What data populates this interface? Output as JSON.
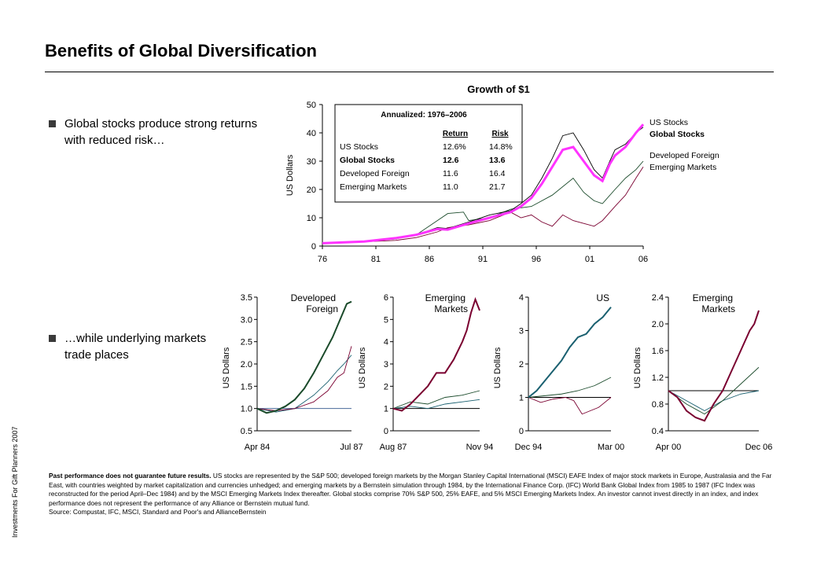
{
  "title": "Benefits of Global Diversification",
  "sidebar_text": "Investments For Gift Planners 2007",
  "bullets": [
    {
      "text": "Global stocks produce strong returns with reduced risk…"
    },
    {
      "text": "…while underlying markets trade places"
    }
  ],
  "colors": {
    "us": "#000000",
    "global": "#ff33ff",
    "developed": "#1a4a2a",
    "emerging": "#7a0030",
    "teal": "#1a6070"
  },
  "chart_data": [
    {
      "type": "line",
      "title": "Growth of $1",
      "ylabel": "US Dollars",
      "xlabel": "",
      "x_ticks": [
        "76",
        "81",
        "86",
        "91",
        "96",
        "01",
        "06"
      ],
      "y_ticks": [
        0,
        10,
        20,
        30,
        40,
        50
      ],
      "ylim": [
        0,
        50
      ],
      "xlim": [
        1976,
        2006.7
      ],
      "inset_table": {
        "title": "Annualized: 1976–2006",
        "headers": [
          "Return",
          "Risk"
        ],
        "rows": [
          {
            "name": "US Stocks",
            "return": "12.6%",
            "risk": "14.8%",
            "bold": false
          },
          {
            "name": "Global Stocks",
            "return": "12.6",
            "risk": "13.6",
            "bold": true
          },
          {
            "name": "Developed Foreign",
            "return": "11.6",
            "risk": "16.4",
            "bold": false
          },
          {
            "name": "Emerging Markets",
            "return": "11.0",
            "risk": "21.7",
            "bold": false
          }
        ]
      },
      "legend": [
        {
          "name": "US Stocks",
          "bold": false
        },
        {
          "name": "Global Stocks",
          "bold": true
        },
        {
          "name": "Developed Foreign",
          "bold": false
        },
        {
          "name": "Emerging Markets",
          "bold": false
        }
      ],
      "series": [
        {
          "name": "US Stocks",
          "color": "#000000",
          "x": [
            1976,
            1980,
            1983,
            1985,
            1987,
            1988,
            1990,
            1992,
            1994,
            1995,
            1996,
            1997,
            1998,
            1999,
            2000,
            2001,
            2002,
            2002.8,
            2003.5,
            2004,
            2005,
            2006,
            2006.7
          ],
          "y": [
            1,
            1.6,
            2.8,
            4,
            6.5,
            6.2,
            8.5,
            11,
            12.5,
            15,
            18,
            24,
            31,
            39,
            40,
            34,
            27,
            24,
            30,
            34,
            36,
            40,
            42
          ]
        },
        {
          "name": "Global Stocks",
          "color": "#ff33ff",
          "x": [
            1976,
            1980,
            1983,
            1985,
            1987,
            1988,
            1990,
            1992,
            1994,
            1995,
            1996,
            1997,
            1998,
            1999,
            2000,
            2001,
            2002,
            2002.8,
            2003.5,
            2004,
            2005,
            2006,
            2006.7
          ],
          "y": [
            1,
            1.6,
            2.8,
            4,
            6,
            5.8,
            8,
            10,
            12,
            14,
            17,
            22,
            28,
            34,
            35,
            30,
            25,
            23,
            29,
            32,
            35,
            40,
            43
          ]
        },
        {
          "name": "Developed Foreign",
          "color": "#1a4a2a",
          "x": [
            1976,
            1980,
            1983,
            1985,
            1987,
            1988,
            1989.5,
            1990,
            1992,
            1994,
            1996,
            1998,
            2000,
            2001,
            2002,
            2002.8,
            2004,
            2005,
            2006,
            2006.7
          ],
          "y": [
            1,
            1.7,
            2.5,
            4,
            9,
            11.5,
            12,
            9,
            10,
            13,
            14,
            18,
            24,
            19,
            16,
            15,
            20,
            24,
            27,
            30
          ]
        },
        {
          "name": "Emerging Markets",
          "color": "#7a0030",
          "x": [
            1976,
            1980,
            1983,
            1985,
            1987,
            1988,
            1990,
            1992,
            1994,
            1995,
            1996,
            1997,
            1998,
            1999,
            2000,
            2001,
            2002,
            2002.8,
            2004,
            2005,
            2006,
            2006.7
          ],
          "y": [
            1,
            1.5,
            2,
            3,
            5,
            6.5,
            7.5,
            9,
            12,
            10,
            11,
            8.5,
            7,
            11,
            9,
            8,
            7,
            9,
            14,
            18,
            24,
            28
          ]
        }
      ]
    },
    {
      "type": "line",
      "title": "Developed Foreign",
      "ylabel": "US Dollars",
      "x_ticks": [
        "Apr 84",
        "Jul 87"
      ],
      "y_ticks": [
        "0.5",
        "1.0",
        "1.5",
        "2.0",
        "2.5",
        "3.0",
        "3.5"
      ],
      "ylim": [
        0.5,
        3.5
      ],
      "xlim": [
        0,
        1
      ],
      "baseline": 1.0,
      "series": [
        {
          "name": "Developed Foreign",
          "color": "#1a4a2a",
          "x": [
            0,
            0.1,
            0.2,
            0.3,
            0.4,
            0.5,
            0.6,
            0.7,
            0.8,
            0.9,
            0.95,
            1.0
          ],
          "y": [
            1.0,
            0.9,
            0.95,
            1.05,
            1.2,
            1.45,
            1.8,
            2.2,
            2.6,
            3.1,
            3.35,
            3.4
          ]
        },
        {
          "name": "Emerging Markets",
          "color": "#7a0030",
          "x": [
            0,
            0.2,
            0.4,
            0.6,
            0.75,
            0.85,
            0.92,
            1.0
          ],
          "y": [
            1.0,
            0.95,
            1.0,
            1.15,
            1.4,
            1.7,
            1.8,
            2.4
          ]
        },
        {
          "name": "US Stocks",
          "color": "#1a6070",
          "x": [
            0,
            0.2,
            0.4,
            0.6,
            0.75,
            0.85,
            0.92,
            1.0
          ],
          "y": [
            1.0,
            0.92,
            1.0,
            1.3,
            1.6,
            1.85,
            2.0,
            2.2
          ]
        }
      ]
    },
    {
      "type": "line",
      "title": "Emerging Markets",
      "ylabel": "US Dollars",
      "x_ticks": [
        "Aug 87",
        "Nov 94"
      ],
      "y_ticks": [
        "0",
        "1",
        "2",
        "3",
        "4",
        "5",
        "6"
      ],
      "ylim": [
        0,
        6
      ],
      "xlim": [
        0,
        1
      ],
      "baseline": 1,
      "series": [
        {
          "name": "Emerging Markets",
          "color": "#7a0030",
          "x": [
            0,
            0.1,
            0.2,
            0.3,
            0.4,
            0.5,
            0.6,
            0.7,
            0.8,
            0.85,
            0.9,
            0.95,
            1.0
          ],
          "y": [
            1,
            0.9,
            1.2,
            1.6,
            2.0,
            2.6,
            2.6,
            3.2,
            4.0,
            4.5,
            5.3,
            5.9,
            5.4
          ]
        },
        {
          "name": "Developed Foreign",
          "color": "#1a4a2a",
          "x": [
            0,
            0.2,
            0.4,
            0.6,
            0.8,
            1.0
          ],
          "y": [
            1,
            1.3,
            1.2,
            1.5,
            1.6,
            1.8
          ]
        },
        {
          "name": "US Stocks",
          "color": "#1a6070",
          "x": [
            0,
            0.2,
            0.4,
            0.6,
            0.8,
            1.0
          ],
          "y": [
            1,
            1.1,
            1.0,
            1.2,
            1.3,
            1.4
          ]
        }
      ]
    },
    {
      "type": "line",
      "title": "US",
      "ylabel": "US Dollars",
      "x_ticks": [
        "Dec 94",
        "Mar 00"
      ],
      "y_ticks": [
        "0",
        "1",
        "2",
        "3",
        "4"
      ],
      "ylim": [
        0,
        4
      ],
      "xlim": [
        0,
        1
      ],
      "baseline": 1,
      "series": [
        {
          "name": "US Stocks",
          "color": "#1a6070",
          "x": [
            0,
            0.1,
            0.2,
            0.3,
            0.4,
            0.5,
            0.6,
            0.7,
            0.8,
            0.9,
            1.0
          ],
          "y": [
            1,
            1.2,
            1.5,
            1.8,
            2.1,
            2.5,
            2.8,
            2.9,
            3.2,
            3.4,
            3.7
          ]
        },
        {
          "name": "Developed Foreign",
          "color": "#1a4a2a",
          "x": [
            0,
            0.2,
            0.4,
            0.6,
            0.8,
            1.0
          ],
          "y": [
            1,
            1.05,
            1.1,
            1.2,
            1.35,
            1.6
          ]
        },
        {
          "name": "Emerging Markets",
          "color": "#7a0030",
          "x": [
            0,
            0.15,
            0.3,
            0.45,
            0.55,
            0.65,
            0.75,
            0.85,
            1.0
          ],
          "y": [
            1,
            0.85,
            0.95,
            1.0,
            0.9,
            0.5,
            0.6,
            0.7,
            1.0
          ]
        }
      ]
    },
    {
      "type": "line",
      "title": "Emerging Markets",
      "ylabel": "US Dollars",
      "x_ticks": [
        "Apr 00",
        "Dec 06"
      ],
      "y_ticks": [
        "0.4",
        "0.8",
        "1.2",
        "1.6",
        "2.0",
        "2.4"
      ],
      "ylim": [
        0.4,
        2.4
      ],
      "xlim": [
        0,
        1
      ],
      "baseline": 1.0,
      "series": [
        {
          "name": "Emerging Markets",
          "color": "#7a0030",
          "x": [
            0,
            0.1,
            0.2,
            0.3,
            0.4,
            0.5,
            0.6,
            0.7,
            0.8,
            0.9,
            0.95,
            1.0
          ],
          "y": [
            1.0,
            0.9,
            0.7,
            0.6,
            0.55,
            0.8,
            1.0,
            1.3,
            1.6,
            1.9,
            2.0,
            2.2
          ]
        },
        {
          "name": "Developed Foreign",
          "color": "#1a4a2a",
          "x": [
            0,
            0.2,
            0.4,
            0.6,
            0.8,
            1.0
          ],
          "y": [
            1.0,
            0.8,
            0.65,
            0.85,
            1.1,
            1.35
          ]
        },
        {
          "name": "US Stocks",
          "color": "#1a6070",
          "x": [
            0,
            0.2,
            0.4,
            0.6,
            0.8,
            1.0
          ],
          "y": [
            1.0,
            0.85,
            0.7,
            0.85,
            0.95,
            1.0
          ]
        }
      ]
    }
  ],
  "footnote": {
    "bold": "Past performance does not guarantee future results.",
    "text": " US stocks are represented by the S&P 500; developed foreign markets by the Morgan Stanley Capital International (MSCI) EAFE Index of major stock markets in Europe, Australasia and the Far East, with countries weighted by market capitalization and currencies unhedged; and emerging markets by a Bernstein simulation through 1984, by the International Finance Corp. (IFC) World Bank Global Index from 1985 to 1987 (IFC Index was reconstructed for the period April–Dec 1984) and by the MSCI Emerging Markets Index thereafter. Global stocks comprise 70% S&P 500, 25% EAFE, and 5% MSCI Emerging Markets Index. An investor cannot invest directly in an index, and index performance does not represent the performance of any Alliance or Bernstein mutual fund.",
    "source": "Source: Compustat, IFC, MSCI, Standard and Poor's and AllianceBernstein"
  }
}
